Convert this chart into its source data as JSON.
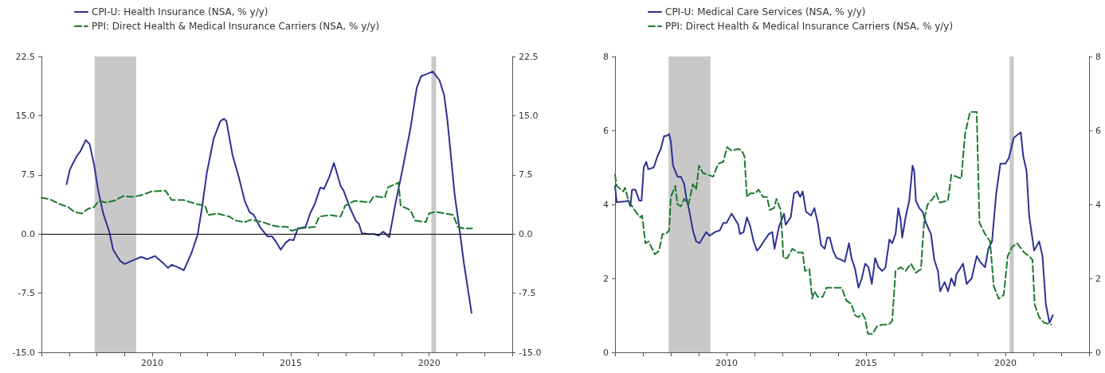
{
  "chart_data": [
    {
      "type": "line",
      "legend": "top left",
      "marker": "none",
      "xlim": [
        2006,
        2023
      ],
      "xticks": [
        {
          "value": 2006,
          "label": null
        },
        {
          "value": 2007,
          "label": null
        },
        {
          "value": 2008,
          "label": null
        },
        {
          "value": 2009,
          "label": null
        },
        {
          "value": 2010,
          "label": "2010"
        },
        {
          "value": 2011,
          "label": null
        },
        {
          "value": 2012,
          "label": null
        },
        {
          "value": 2013,
          "label": null
        },
        {
          "value": 2014,
          "label": null
        },
        {
          "value": 2015,
          "label": "2015"
        },
        {
          "value": 2016,
          "label": null
        },
        {
          "value": 2017,
          "label": null
        },
        {
          "value": 2018,
          "label": null
        },
        {
          "value": 2019,
          "label": null
        },
        {
          "value": 2020,
          "label": "2020"
        },
        {
          "value": 2021,
          "label": null
        },
        {
          "value": 2022,
          "label": null
        },
        {
          "value": 2023,
          "label": null
        }
      ],
      "ylim": [
        -15,
        22.5
      ],
      "yticks": [
        {
          "value": -15,
          "label": "-15.0"
        },
        {
          "value": -7.5,
          "label": "-7.5"
        },
        {
          "value": 0,
          "label": "0.0"
        },
        {
          "value": 7.5,
          "label": "7.5"
        },
        {
          "value": 15,
          "label": "15.0"
        },
        {
          "value": 22.5,
          "label": "22.5"
        }
      ],
      "y2lim": [
        -15,
        22.5
      ],
      "y2ticks": [
        {
          "value": -15,
          "label": "-15.0"
        },
        {
          "value": -7.5,
          "label": "-7.5"
        },
        {
          "value": 0,
          "label": "0.0"
        },
        {
          "value": 7.5,
          "label": "7.5"
        },
        {
          "value": 15,
          "label": "15.0"
        },
        {
          "value": 22.5,
          "label": "22.5"
        }
      ],
      "ref_lines": [
        {
          "axis": "y",
          "value": 0,
          "label": null,
          "color": "#000000"
        }
      ],
      "bands": [
        {
          "axis": "x",
          "from": 2007.92,
          "to": 2009.42,
          "label": null,
          "color": "#c8c8c8"
        },
        {
          "axis": "x",
          "from": 2020.08,
          "to": 2020.25,
          "label": null,
          "color": "#c8c8c8"
        }
      ],
      "series": [
        {
          "name": "CPI-U: Health Insurance (NSA, % y/y)",
          "color": "#2e3192",
          "line_style": "solid",
          "x": [
            2006.91,
            2007.02,
            2007.13,
            2007.3,
            2007.41,
            2007.6,
            2007.74,
            2007.9,
            2008.04,
            2008.23,
            2008.45,
            2008.59,
            2008.84,
            2009.0,
            2009.27,
            2009.6,
            2009.82,
            2010.1,
            2010.37,
            2010.57,
            2010.7,
            2010.92,
            2011.14,
            2011.42,
            2011.64,
            2011.8,
            2011.97,
            2012.22,
            2012.46,
            2012.59,
            2012.68,
            2012.9,
            2013.12,
            2013.34,
            2013.51,
            2013.67,
            2013.89,
            2014.16,
            2014.33,
            2014.49,
            2014.64,
            2014.82,
            2014.97,
            2015.1,
            2015.26,
            2015.54,
            2015.7,
            2015.87,
            2016.07,
            2016.2,
            2016.4,
            2016.56,
            2016.67,
            2016.8,
            2016.91,
            2017.13,
            2017.35,
            2017.46,
            2017.57,
            2017.79,
            2018.01,
            2018.18,
            2018.34,
            2018.56,
            2018.78,
            2019.05,
            2019.33,
            2019.55,
            2019.71,
            2019.93,
            2020.13,
            2020.37,
            2020.54,
            2020.65,
            2020.76,
            2020.92,
            2021.09,
            2021.25,
            2021.42,
            2021.53
          ],
          "values": [
            6.3,
            8.1,
            8.9,
            10.0,
            10.5,
            11.9,
            11.4,
            8.8,
            5.7,
            2.6,
            0.3,
            -2.0,
            -3.4,
            -3.8,
            -3.4,
            -2.9,
            -3.2,
            -2.8,
            -3.6,
            -4.3,
            -3.9,
            -4.2,
            -4.6,
            -2.4,
            -0.1,
            3.4,
            7.7,
            12.1,
            14.3,
            14.6,
            14.3,
            10.0,
            7.3,
            4.2,
            2.8,
            2.4,
            0.9,
            -0.3,
            -0.3,
            -1.1,
            -2.0,
            -1.1,
            -0.7,
            -0.8,
            0.7,
            0.9,
            2.6,
            3.8,
            5.9,
            5.7,
            7.3,
            9.0,
            7.7,
            6.1,
            5.5,
            3.4,
            1.7,
            1.3,
            0.1,
            0.0,
            0.0,
            -0.2,
            0.3,
            -0.4,
            3.8,
            8.4,
            13.5,
            18.5,
            20.0,
            20.3,
            20.6,
            19.5,
            17.6,
            14.7,
            10.8,
            5.0,
            0.7,
            -3.6,
            -7.5,
            -10.0
          ]
        },
        {
          "name": "PPI: Direct Health & Medical Insurance Carriers (NSA, % y/y)",
          "color": "#1a7a2e",
          "line_style": "dashed",
          "x": [
            2006.0,
            2006.31,
            2006.64,
            2006.97,
            2007.19,
            2007.46,
            2007.68,
            2007.9,
            2008.07,
            2008.34,
            2008.62,
            2008.95,
            2009.27,
            2009.6,
            2009.99,
            2010.48,
            2010.7,
            2011.14,
            2011.58,
            2011.91,
            2012.02,
            2012.35,
            2012.79,
            2013.01,
            2013.34,
            2013.56,
            2014.0,
            2014.33,
            2014.6,
            2014.88,
            2015.04,
            2015.32,
            2015.87,
            2016.03,
            2016.42,
            2016.8,
            2016.97,
            2017.3,
            2017.85,
            2018.01,
            2018.4,
            2018.51,
            2018.89,
            2018.97,
            2019.33,
            2019.49,
            2019.88,
            2019.99,
            2020.21,
            2020.59,
            2020.87,
            2021.03,
            2021.25,
            2021.55
          ],
          "values": [
            4.6,
            4.4,
            3.8,
            3.4,
            2.8,
            2.6,
            3.2,
            3.4,
            4.2,
            4.0,
            4.2,
            4.8,
            4.7,
            4.9,
            5.4,
            5.5,
            4.3,
            4.3,
            3.8,
            3.6,
            2.4,
            2.6,
            2.2,
            1.7,
            1.5,
            1.8,
            1.5,
            1.1,
            0.9,
            0.9,
            0.4,
            0.7,
            0.9,
            2.2,
            2.4,
            2.2,
            3.6,
            4.2,
            4.0,
            4.8,
            4.6,
            5.9,
            6.5,
            3.6,
            3.0,
            1.7,
            1.5,
            2.6,
            2.8,
            2.6,
            2.4,
            0.9,
            0.7,
            0.7
          ]
        }
      ]
    },
    {
      "type": "line",
      "legend": "top left",
      "marker": "none",
      "xlim": [
        2006,
        2023
      ],
      "xticks": [
        {
          "value": 2006,
          "label": null
        },
        {
          "value": 2007,
          "label": null
        },
        {
          "value": 2008,
          "label": null
        },
        {
          "value": 2009,
          "label": null
        },
        {
          "value": 2010,
          "label": "2010"
        },
        {
          "value": 2011,
          "label": null
        },
        {
          "value": 2012,
          "label": null
        },
        {
          "value": 2013,
          "label": null
        },
        {
          "value": 2014,
          "label": null
        },
        {
          "value": 2015,
          "label": "2015"
        },
        {
          "value": 2016,
          "label": null
        },
        {
          "value": 2017,
          "label": null
        },
        {
          "value": 2018,
          "label": null
        },
        {
          "value": 2019,
          "label": null
        },
        {
          "value": 2020,
          "label": "2020"
        },
        {
          "value": 2021,
          "label": null
        },
        {
          "value": 2022,
          "label": null
        },
        {
          "value": 2023,
          "label": null
        }
      ],
      "ylim": [
        0,
        8
      ],
      "yticks": [
        0,
        2,
        4,
        6,
        8
      ],
      "y2lim": [
        0,
        8
      ],
      "y2ticks": [
        0,
        2,
        4,
        6,
        8
      ],
      "bands": [
        {
          "axis": "x",
          "from": 2007.92,
          "to": 2009.42,
          "label": null,
          "color": "#c8c8c8"
        },
        {
          "axis": "x",
          "from": 2020.15,
          "to": 2020.3,
          "label": null,
          "color": "#c8c8c8"
        }
      ],
      "series": [
        {
          "name": "CPI-U: Medical Care Services (NSA, % y/y)",
          "color": "#2e3192",
          "line_style": "solid",
          "x": [
            2006.0,
            2006.06,
            2006.36,
            2006.48,
            2006.55,
            2006.61,
            2006.73,
            2006.87,
            2006.95,
            2007.03,
            2007.12,
            2007.19,
            2007.39,
            2007.52,
            2007.64,
            2007.76,
            2007.84,
            2007.94,
            2008.0,
            2008.08,
            2008.24,
            2008.36,
            2008.48,
            2008.55,
            2008.67,
            2008.79,
            2008.91,
            2009.03,
            2009.15,
            2009.27,
            2009.39,
            2009.58,
            2009.76,
            2009.88,
            2010.0,
            2010.18,
            2010.3,
            2010.42,
            2010.48,
            2010.61,
            2010.73,
            2010.85,
            2010.97,
            2011.09,
            2011.21,
            2011.33,
            2011.52,
            2011.64,
            2011.72,
            2011.88,
            2012.06,
            2012.12,
            2012.3,
            2012.42,
            2012.55,
            2012.64,
            2012.73,
            2012.85,
            2013.03,
            2013.15,
            2013.27,
            2013.39,
            2013.52,
            2013.61,
            2013.7,
            2013.82,
            2013.94,
            2014.12,
            2014.24,
            2014.39,
            2014.48,
            2014.61,
            2014.73,
            2014.85,
            2014.97,
            2015.09,
            2015.21,
            2015.33,
            2015.45,
            2015.58,
            2015.7,
            2015.84,
            2015.94,
            2016.06,
            2016.16,
            2016.24,
            2016.3,
            2016.42,
            2016.55,
            2016.67,
            2016.73,
            2016.79,
            2016.91,
            2017.03,
            2017.15,
            2017.33,
            2017.45,
            2017.58,
            2017.66,
            2017.82,
            2017.94,
            2018.06,
            2018.18,
            2018.24,
            2018.48,
            2018.61,
            2018.79,
            2018.97,
            2019.09,
            2019.27,
            2019.39,
            2019.52,
            2019.67,
            2019.82,
            2020.0,
            2020.12,
            2020.3,
            2020.55,
            2020.64,
            2020.76,
            2020.85,
            2021.03,
            2021.21,
            2021.33,
            2021.45,
            2021.58,
            2021.7
          ],
          "values": [
            4.5,
            4.06,
            4.08,
            4.1,
            3.95,
            4.4,
            4.4,
            4.1,
            4.1,
            5.0,
            5.15,
            4.95,
            5.0,
            5.3,
            5.5,
            5.85,
            5.85,
            5.9,
            5.7,
            5.05,
            4.75,
            4.75,
            4.55,
            4.2,
            3.8,
            3.3,
            3.0,
            2.95,
            3.1,
            3.25,
            3.15,
            3.25,
            3.3,
            3.5,
            3.5,
            3.75,
            3.6,
            3.45,
            3.2,
            3.25,
            3.65,
            3.4,
            3.0,
            2.75,
            2.85,
            3.0,
            3.2,
            3.25,
            2.8,
            3.4,
            3.75,
            3.45,
            3.65,
            4.3,
            4.35,
            4.2,
            4.35,
            3.8,
            3.7,
            3.9,
            3.5,
            2.9,
            2.8,
            3.1,
            3.1,
            2.75,
            2.55,
            2.5,
            2.45,
            2.95,
            2.55,
            2.25,
            1.75,
            2.0,
            2.4,
            2.3,
            1.85,
            2.55,
            2.3,
            2.2,
            2.3,
            3.05,
            2.95,
            3.2,
            3.9,
            3.6,
            3.1,
            3.65,
            4.1,
            5.05,
            4.9,
            4.1,
            3.9,
            3.8,
            3.5,
            3.2,
            2.5,
            2.2,
            1.65,
            1.9,
            1.65,
            2.0,
            1.8,
            2.1,
            2.4,
            1.85,
            2.0,
            2.6,
            2.45,
            2.3,
            2.8,
            3.0,
            4.3,
            5.1,
            5.1,
            5.25,
            5.8,
            5.95,
            5.3,
            4.9,
            3.7,
            2.75,
            3.0,
            2.6,
            1.3,
            0.8,
            1.0
          ]
        },
        {
          "name": "PPI: Direct Health & Medical Insurance Carriers (NSA, % y/y)",
          "color": "#1a7a2e",
          "line_style": "dashed",
          "x": [
            2006.0,
            2006.06,
            2006.3,
            2006.36,
            2006.48,
            2006.61,
            2006.79,
            2006.91,
            2006.97,
            2007.09,
            2007.21,
            2007.33,
            2007.43,
            2007.58,
            2007.7,
            2007.82,
            2007.94,
            2008.0,
            2008.16,
            2008.24,
            2008.36,
            2008.48,
            2008.64,
            2008.79,
            2008.91,
            2009.01,
            2009.15,
            2009.33,
            2009.52,
            2009.7,
            2009.88,
            2010.02,
            2010.18,
            2010.42,
            2010.55,
            2010.64,
            2010.73,
            2010.85,
            2011.03,
            2011.15,
            2011.31,
            2011.45,
            2011.55,
            2011.7,
            2011.79,
            2011.94,
            2012.04,
            2012.18,
            2012.36,
            2012.55,
            2012.73,
            2012.81,
            2012.97,
            2013.07,
            2013.15,
            2013.27,
            2013.45,
            2013.58,
            2013.94,
            2014.12,
            2014.3,
            2014.48,
            2014.61,
            2014.73,
            2014.87,
            2014.97,
            2015.07,
            2015.24,
            2015.39,
            2015.58,
            2015.82,
            2015.94,
            2016.06,
            2016.24,
            2016.42,
            2016.61,
            2016.79,
            2016.97,
            2017.09,
            2017.21,
            2017.39,
            2017.52,
            2017.64,
            2017.94,
            2018.06,
            2018.24,
            2018.42,
            2018.55,
            2018.73,
            2018.97,
            2019.07,
            2019.27,
            2019.45,
            2019.58,
            2019.76,
            2019.94,
            2020.08,
            2020.24,
            2020.42,
            2020.67,
            2020.85,
            2020.97,
            2021.05,
            2021.21,
            2021.39,
            2021.64
          ],
          "values": [
            4.8,
            4.5,
            4.35,
            4.45,
            4.1,
            3.95,
            3.75,
            3.65,
            3.7,
            2.95,
            3.0,
            2.8,
            2.65,
            2.75,
            3.2,
            3.2,
            3.3,
            4.2,
            4.5,
            4.0,
            3.95,
            4.15,
            4.0,
            4.55,
            4.4,
            5.05,
            4.85,
            4.8,
            4.75,
            5.1,
            5.15,
            5.55,
            5.45,
            5.5,
            5.45,
            5.3,
            4.2,
            4.3,
            4.3,
            4.4,
            4.2,
            4.2,
            3.85,
            3.9,
            4.15,
            3.85,
            2.55,
            2.55,
            2.8,
            2.7,
            2.7,
            2.2,
            2.25,
            1.45,
            1.65,
            1.5,
            1.5,
            1.75,
            1.75,
            1.75,
            1.4,
            1.3,
            1.0,
            0.95,
            1.05,
            0.9,
            0.5,
            0.5,
            0.7,
            0.75,
            0.75,
            0.85,
            2.2,
            2.3,
            2.2,
            2.4,
            2.15,
            2.25,
            3.6,
            4.0,
            4.15,
            4.3,
            4.05,
            4.1,
            4.8,
            4.75,
            4.7,
            5.9,
            6.5,
            6.5,
            3.5,
            3.2,
            3.0,
            1.8,
            1.45,
            1.55,
            2.6,
            2.85,
            2.95,
            2.7,
            2.6,
            2.5,
            1.3,
            0.95,
            0.8,
            0.75
          ]
        }
      ]
    }
  ]
}
